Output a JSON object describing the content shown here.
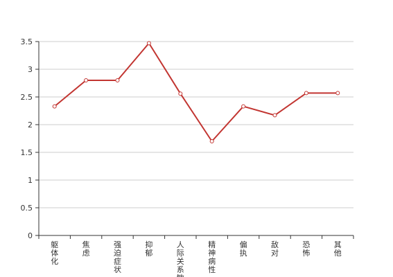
{
  "chart_data": {
    "type": "line",
    "title": "",
    "xlabel": "",
    "ylabel": "",
    "categories": [
      "躯体化",
      "焦虑",
      "强迫症状",
      "抑郁",
      "人际关系敏感",
      "精神病性",
      "偏执",
      "敌对",
      "恐怖",
      "其他"
    ],
    "series": [
      {
        "values": [
          2.33,
          2.8,
          2.8,
          3.47,
          2.56,
          1.7,
          2.33,
          2.17,
          2.57,
          2.57
        ]
      }
    ],
    "ylim": [
      0,
      3.5
    ],
    "yticks": [
      "0",
      "0.5",
      "1",
      "1.5",
      "2",
      "2.5",
      "3",
      "3.5"
    ],
    "grid": true,
    "legend": "none",
    "colors": {
      "line": "#c23531",
      "marker_fill": "#ffffff",
      "grid": "#cccccc",
      "axis": "#333333"
    }
  }
}
